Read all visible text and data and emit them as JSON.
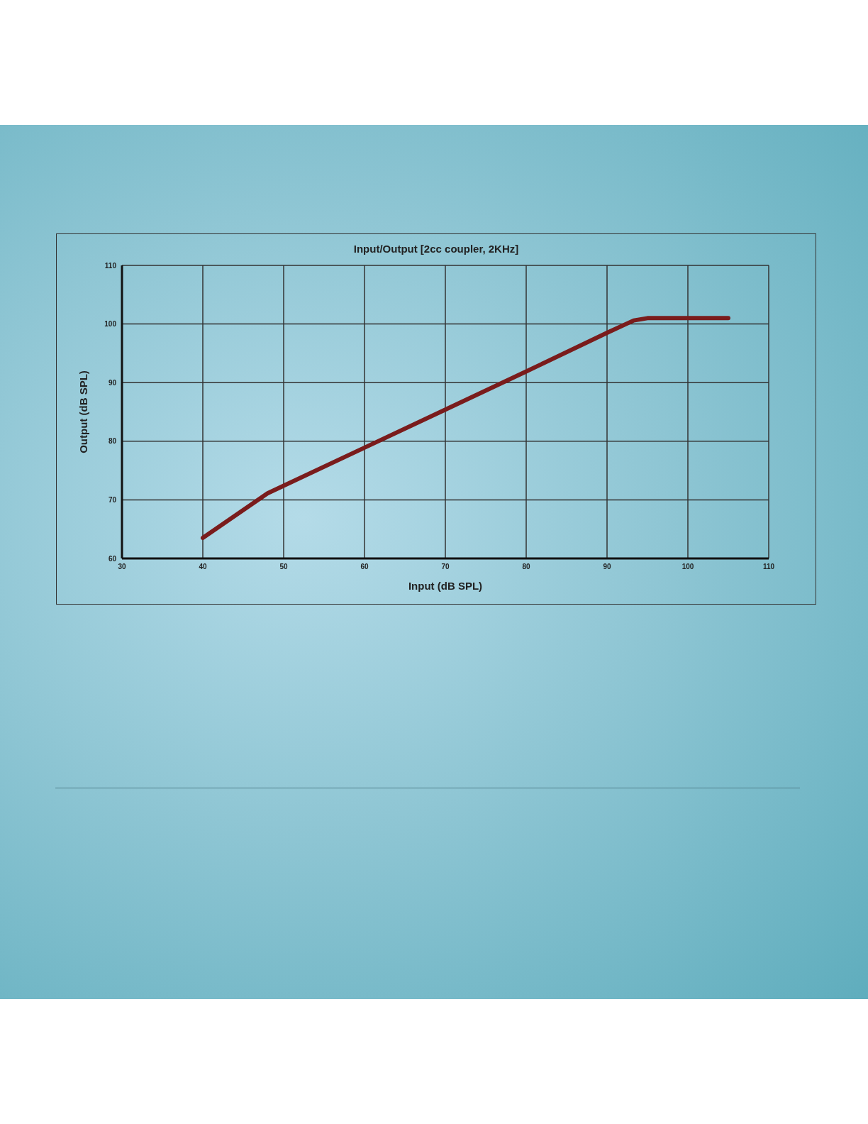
{
  "chart_data": {
    "type": "line",
    "title": "Input/Output [2cc coupler, 2KHz]",
    "xlabel": "Input (dB SPL)",
    "ylabel": "Output (dB SPL)",
    "series": [
      {
        "color": "#7a1c1c",
        "x": [
          40,
          48,
          50,
          60,
          70,
          80,
          90,
          93.3,
          95,
          105
        ],
        "values": [
          63.5,
          71.1,
          72.4,
          78.9,
          85.4,
          91.9,
          98.5,
          100.6,
          101,
          101
        ]
      }
    ],
    "xlim": [
      30,
      110
    ],
    "xticks": [
      30,
      40,
      50,
      60,
      70,
      80,
      90,
      100,
      110
    ],
    "ylim": [
      60,
      110
    ],
    "yticks": [
      60,
      70,
      80,
      90,
      100,
      110
    ],
    "grid": true,
    "legend": false,
    "marker": "none",
    "line_style": "solid"
  }
}
